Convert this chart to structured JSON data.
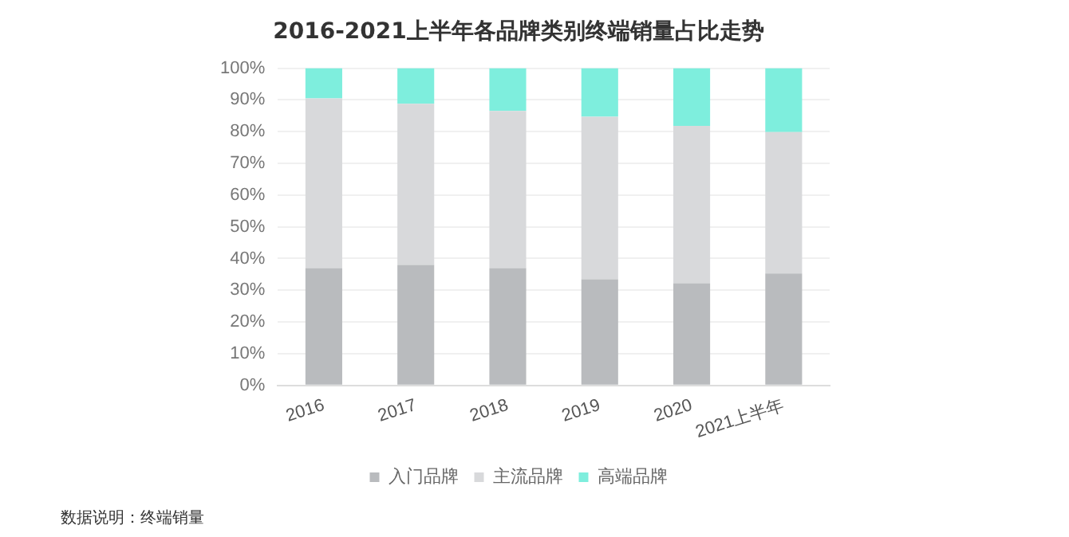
{
  "chart_data": {
    "type": "bar",
    "title": "2016-2021上半年各品牌类别终端销量占比走势",
    "stacked": true,
    "categories": [
      "2016",
      "2017",
      "2018",
      "2019",
      "2020",
      "2021上半年"
    ],
    "series": [
      {
        "name": "入门品牌",
        "color": "#b9bbbe",
        "values": [
          37,
          38,
          37,
          33.5,
          32.2,
          35.3
        ]
      },
      {
        "name": "主流品牌",
        "color": "#d8d9db",
        "values": [
          53.5,
          50.8,
          49.5,
          51.2,
          49.6,
          44.6
        ]
      },
      {
        "name": "高端品牌",
        "color": "#7eeedd",
        "values": [
          9.5,
          11.2,
          13.5,
          15.3,
          18.2,
          20.1
        ]
      }
    ],
    "ylim": [
      0,
      100
    ],
    "yticks": [
      {
        "value": 0,
        "label": "0%"
      },
      {
        "value": 10,
        "label": "10%"
      },
      {
        "value": 20,
        "label": "20%"
      },
      {
        "value": 30,
        "label": "30%"
      },
      {
        "value": 40,
        "label": "40%"
      },
      {
        "value": 50,
        "label": "50%"
      },
      {
        "value": 60,
        "label": "60%"
      },
      {
        "value": 70,
        "label": "70%"
      },
      {
        "value": 80,
        "label": "80%"
      },
      {
        "value": 90,
        "label": "90%"
      },
      {
        "value": 100,
        "label": "100%"
      }
    ],
    "grid": "y",
    "legend": "bottom",
    "annotations": [
      "数据说明：终端销量"
    ]
  }
}
